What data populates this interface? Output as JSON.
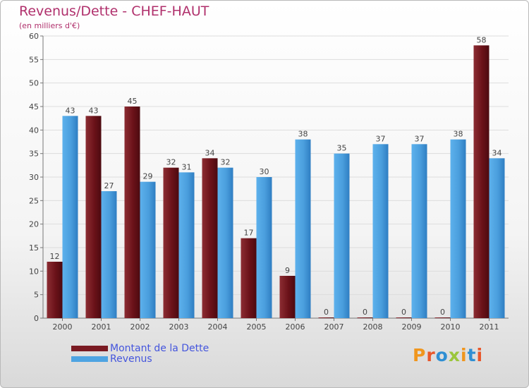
{
  "title": "Revenus/Dette - CHEF-HAUT",
  "subtitle": "(en milliers d'€)",
  "colors": {
    "title": "#b0306c",
    "dette": "#7a1a22",
    "revenus": "#4ea4e2",
    "legend_text": "#4455dd"
  },
  "chart_data": {
    "type": "bar",
    "title": "Revenus/Dette - CHEF-HAUT",
    "ylabel": "(en milliers d'€)",
    "xlabel": "",
    "categories": [
      "2000",
      "2001",
      "2002",
      "2003",
      "2004",
      "2005",
      "2006",
      "2007",
      "2008",
      "2009",
      "2010",
      "2011"
    ],
    "series": [
      {
        "name": "Montant de la Dette",
        "values": [
          12,
          43,
          45,
          32,
          34,
          17,
          9,
          0,
          0,
          0,
          0,
          58
        ]
      },
      {
        "name": "Revenus",
        "values": [
          43,
          27,
          29,
          31,
          32,
          30,
          38,
          35,
          37,
          37,
          38,
          34
        ]
      }
    ],
    "ylim": [
      0,
      60
    ],
    "yticks": [
      0,
      5,
      10,
      15,
      20,
      25,
      30,
      35,
      40,
      45,
      50,
      55,
      60
    ],
    "grid": true,
    "legend": "bottom-left"
  },
  "legend": {
    "items": [
      {
        "label": "Montant de la Dette",
        "color": "#7a1a22"
      },
      {
        "label": "Revenus",
        "color": "#4ea4e2"
      }
    ]
  },
  "brand": {
    "text": "Proxiti",
    "letter_colors": [
      "#f0961e",
      "#e8572b",
      "#2f8fd3",
      "#9bc63b",
      "#f0961e",
      "#2f8fd3",
      "#e8572b"
    ]
  }
}
